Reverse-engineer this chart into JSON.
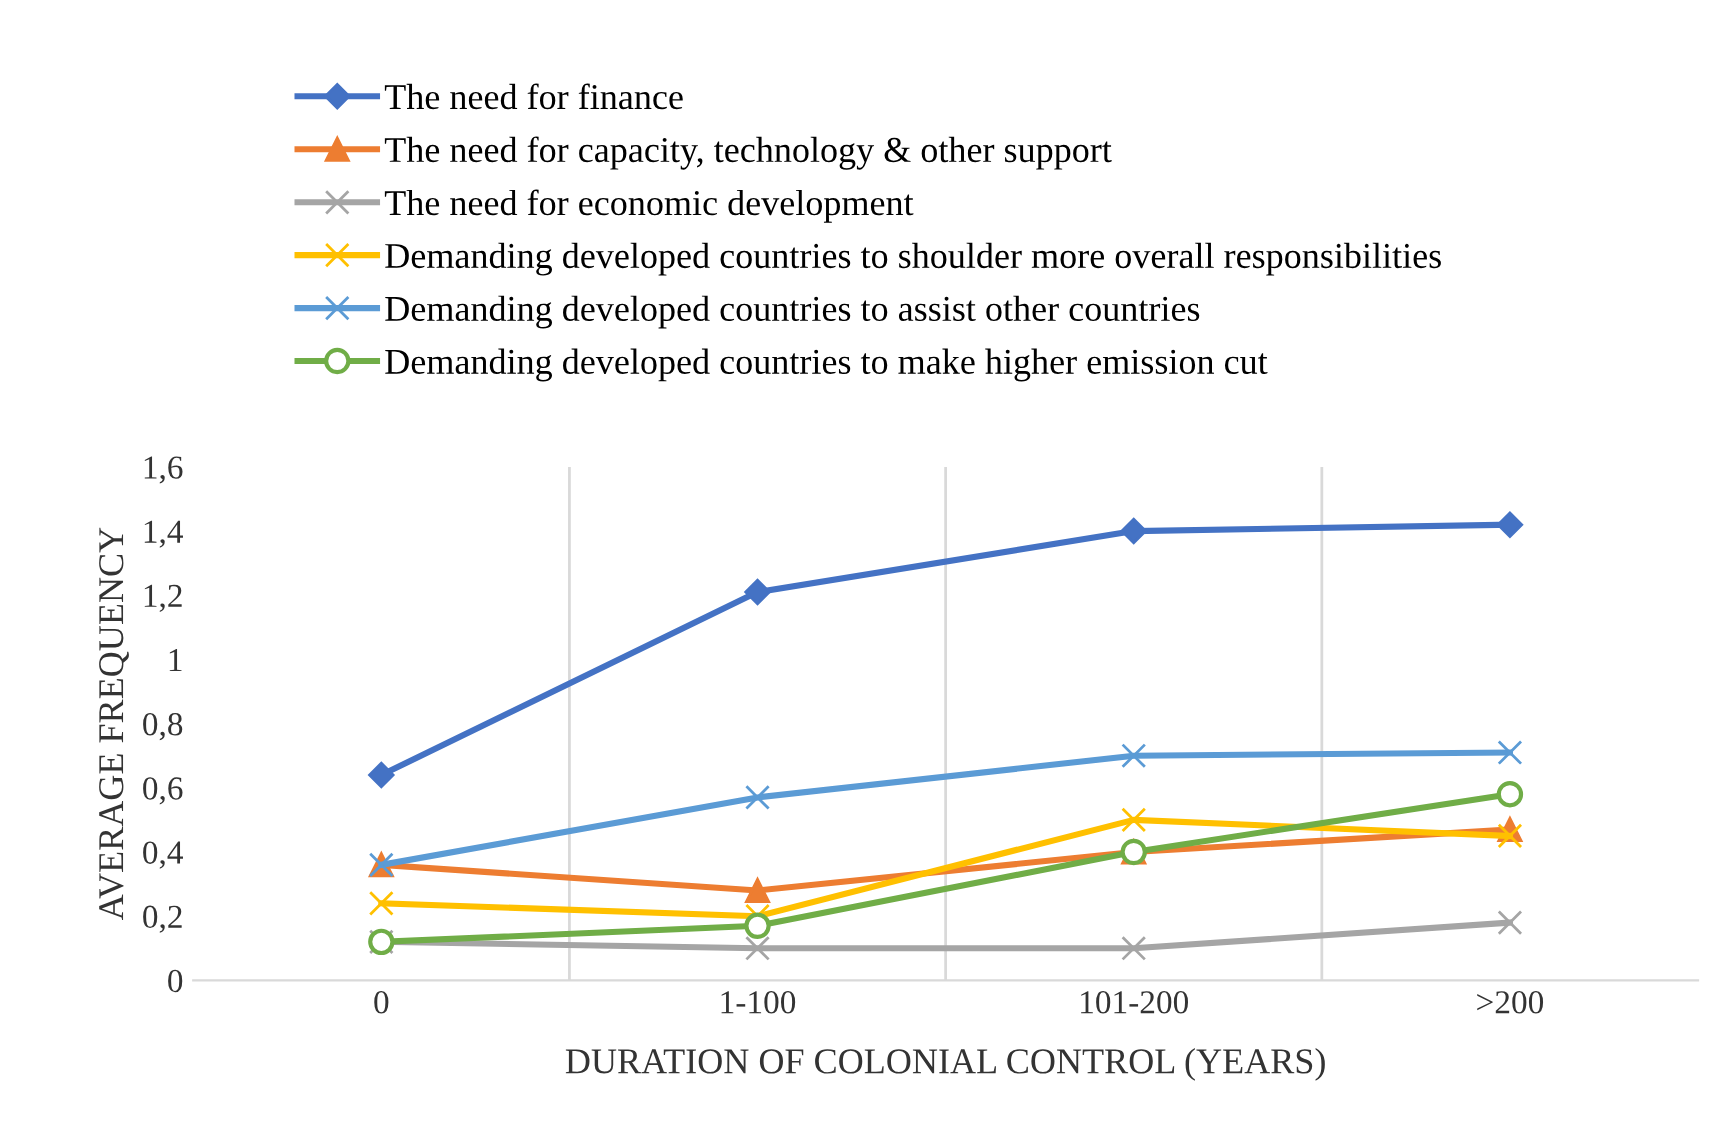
{
  "chart_data": {
    "type": "line",
    "xlabel": "DURATION OF COLONIAL CONTROL (YEARS)",
    "ylabel": "AVERAGE FREQUENCY",
    "categories": [
      "0",
      "1-100",
      "101-200",
      ">200"
    ],
    "series": [
      {
        "name": "The need for finance",
        "color": "#4472c4",
        "marker": "diamond",
        "values": [
          0.64,
          1.21,
          1.4,
          1.42
        ]
      },
      {
        "name": "The need for capacity, technology & other support",
        "color": "#ed7d31",
        "marker": "triangle",
        "values": [
          0.36,
          0.28,
          0.4,
          0.47
        ]
      },
      {
        "name": "The need for economic development",
        "color": "#a5a5a5",
        "marker": "cross",
        "values": [
          0.12,
          0.1,
          0.1,
          0.18
        ]
      },
      {
        "name": "Demanding developed countries to shoulder more overall responsibilities",
        "color": "#ffc000",
        "marker": "cross",
        "values": [
          0.24,
          0.2,
          0.5,
          0.45
        ]
      },
      {
        "name": "Demanding developed countries to assist other countries",
        "color": "#5b9bd5",
        "marker": "cross",
        "values": [
          0.36,
          0.57,
          0.7,
          0.71
        ]
      },
      {
        "name": "Demanding developed countries to make higher emission cut",
        "color": "#70ad47",
        "marker": "circle",
        "values": [
          0.12,
          0.17,
          0.4,
          0.58
        ]
      }
    ],
    "ylim": [
      0,
      1.6
    ],
    "yticks": [
      0,
      {
        "value": 0.2,
        "label": "0,2"
      },
      {
        "value": 0.4,
        "label": "0,4"
      },
      {
        "value": 0.6,
        "label": "0,6"
      },
      {
        "value": 0.8,
        "label": "0,8"
      },
      1,
      {
        "value": 1.2,
        "label": "1,2"
      },
      {
        "value": 1.4,
        "label": "1,4"
      },
      {
        "value": 1.6,
        "label": "1,6"
      }
    ],
    "grid": "x",
    "legend": "top",
    "line_style": "solid"
  }
}
